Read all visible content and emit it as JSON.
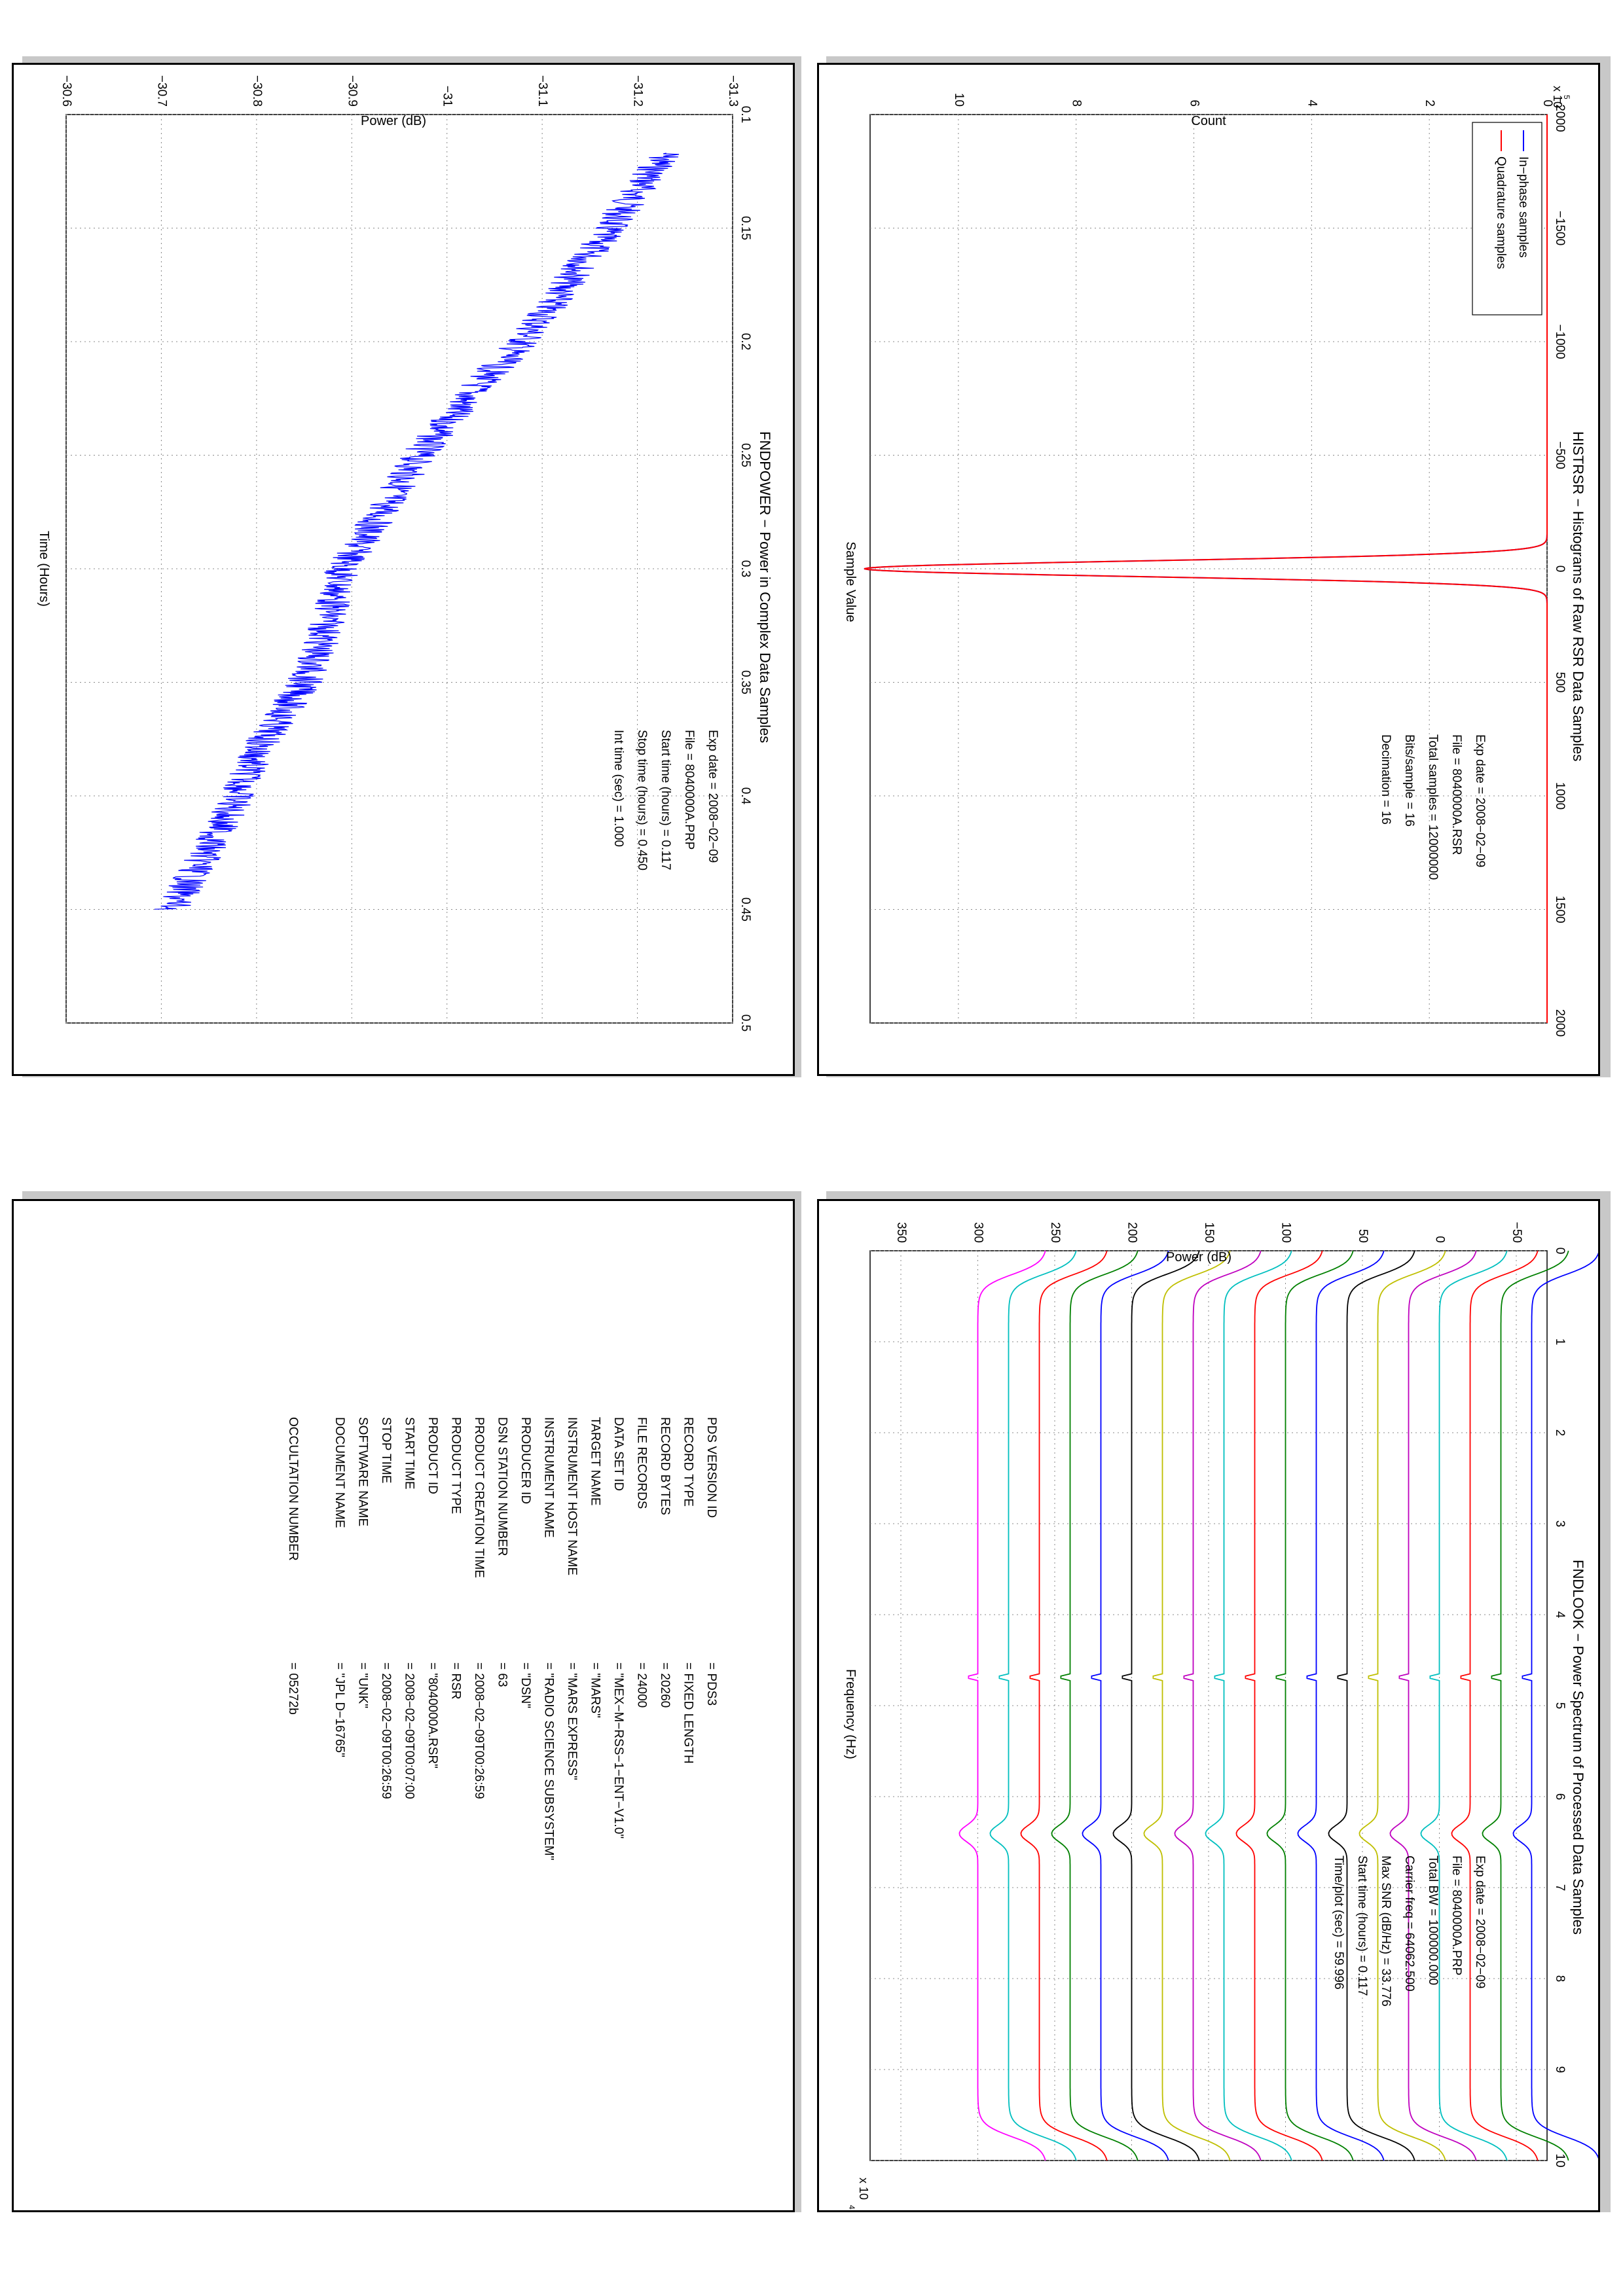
{
  "colors": {
    "inphase": "#0000ff",
    "quadrature": "#ff0000",
    "power_line": "#0000ff",
    "spectrum_cycle": [
      "#ff00ff",
      "#00bfbf",
      "#ff0000",
      "#008000",
      "#0000ff",
      "#000000",
      "#bfbf00",
      "#bf00bf",
      "#00bfbf",
      "#ff0000",
      "#008000",
      "#0000ff",
      "#000000",
      "#bfbf00",
      "#bf00bf",
      "#00bfbf",
      "#ff0000",
      "#008000",
      "#0000ff"
    ]
  },
  "histogram": {
    "title": "HISTRSR − Histograms of Raw RSR Data Samples",
    "xlabel": "Sample Value",
    "ylabel": "Count",
    "multiplier": "x 10",
    "multiplier_exp": "5",
    "legend": [
      "In−phase samples",
      "Quadrature samples"
    ],
    "info": [
      "Exp date = 2008−02−09",
      "File = 8040000A.RSR",
      "Total samples =  12000000",
      "Bits/sample    =        16",
      "Decimation     =        16"
    ],
    "x_ticks": [
      "−2000",
      "−1500",
      "−1000",
      "−500",
      "0",
      "500",
      "1000",
      "1500",
      "2000"
    ],
    "y_ticks": [
      "0",
      "2",
      "4",
      "6",
      "8",
      "10"
    ]
  },
  "power": {
    "title": "FNDPOWER − Power in Complex Data Samples",
    "xlabel": "Time (Hours)",
    "ylabel": "Power (dB)",
    "info": [
      "Exp date = 2008−02−09",
      "File = 8040000A.PRP",
      "Start time (hours) =   0.117",
      "Stop time (hours) =   0.450",
      "Int time (sec) =   1.000"
    ],
    "x_ticks": [
      "0.1",
      "0.15",
      "0.2",
      "0.25",
      "0.3",
      "0.35",
      "0.4",
      "0.45",
      "0.5"
    ],
    "y_ticks": [
      "−31.3",
      "−31.2",
      "−31.1",
      "−31",
      "−30.9",
      "−30.8",
      "−30.7",
      "−30.6"
    ]
  },
  "spectrum": {
    "title": "FNDLOOK − Power Spectrum of Processed Data Samples",
    "xlabel": "Frequency (Hz)",
    "ylabel": "Power (dB)",
    "multiplier": "x 10",
    "multiplier_exp": "4",
    "info": [
      "Exp date = 2008−02−09",
      "File = 8040000A.PRP",
      "Total BW =     100000.000",
      "Carrier freq =   64062.500",
      "Max SNR (dB/Hz) =     33.776",
      "Start time (hours) =     0.117",
      "Time/plot (sec) =     59.996"
    ],
    "x_ticks": [
      "0",
      "1",
      "2",
      "3",
      "4",
      "5",
      "6",
      "7",
      "8",
      "9",
      "10"
    ],
    "y_ticks": [
      "−50",
      "0",
      "50",
      "100",
      "150",
      "200",
      "250",
      "300",
      "350"
    ]
  },
  "label_table": {
    "rows": [
      {
        "key": "PDS VERSION ID",
        "value": "=   PDS3"
      },
      {
        "key": "RECORD TYPE",
        "value": "=   FIXED LENGTH"
      },
      {
        "key": "RECORD BYTES",
        "value": "=   20260"
      },
      {
        "key": "FILE RECORDS",
        "value": "=   24000"
      },
      {
        "key": "DATA SET ID",
        "value": "=   \"MEX−M−RSS−1−ENT−V1.0\""
      },
      {
        "key": "TARGET NAME",
        "value": "=   \"MARS\""
      },
      {
        "key": "INSTRUMENT HOST NAME",
        "value": "=   \"MARS EXPRESS\""
      },
      {
        "key": "INSTRUMENT NAME",
        "value": "=   \"RADIO SCIENCE SUBSYSTEM\""
      },
      {
        "key": "PRODUCER ID",
        "value": "=   \"DSN\""
      },
      {
        "key": "DSN STATION NUMBER",
        "value": "=   63"
      },
      {
        "key": "PRODUCT CREATION TIME",
        "value": "=   2008−02−09T00:26:59"
      },
      {
        "key": "PRODUCT TYPE",
        "value": "=   RSR"
      },
      {
        "key": "PRODUCT ID",
        "value": "=   \"8040000A.RSR\""
      },
      {
        "key": "START TIME",
        "value": "=   2008−02−09T00:07:00"
      },
      {
        "key": "STOP TIME",
        "value": "=   2008−02−09T00:26:59"
      },
      {
        "key": "SOFTWARE NAME",
        "value": "=   \"UNK\""
      },
      {
        "key": "DOCUMENT NAME",
        "value": "=   \"JPL D−16765\""
      },
      {
        "key": "",
        "value": ""
      },
      {
        "key": "OCCULTATION NUMBER",
        "value": "=   05272b"
      }
    ]
  },
  "chart_data": [
    {
      "type": "line",
      "title": "HISTRSR − Histograms of Raw RSR Data Samples",
      "xlabel": "Sample Value",
      "ylabel": "Count",
      "xlim": [
        -2000,
        2000
      ],
      "ylim": [
        0,
        1150000
      ],
      "grid": true,
      "legend_placement": "top-left",
      "series": [
        {
          "name": "In−phase samples",
          "x": [
            -2000,
            -500,
            -200,
            -150,
            -100,
            -75,
            -50,
            -25,
            0,
            25,
            50,
            75,
            100,
            150,
            200,
            500,
            2000
          ],
          "values": [
            0,
            0,
            0,
            100,
            3000,
            29000,
            161000,
            526000,
            1160000,
            526000,
            161000,
            29000,
            3000,
            100,
            0,
            0,
            0
          ]
        },
        {
          "name": "Quadrature samples",
          "x": [
            -2000,
            -500,
            -200,
            -150,
            -100,
            -75,
            -50,
            -25,
            0,
            25,
            50,
            75,
            100,
            150,
            200,
            500,
            2000
          ],
          "values": [
            0,
            0,
            0,
            100,
            3000,
            29000,
            161000,
            526000,
            1160000,
            526000,
            161000,
            29000,
            3000,
            100,
            0,
            0,
            0
          ]
        }
      ]
    },
    {
      "type": "line",
      "title": "FNDPOWER − Power in Complex Data Samples",
      "xlabel": "Time (Hours)",
      "ylabel": "Power (dB)",
      "xlim": [
        0.1,
        0.5
      ],
      "ylim": [
        -31.3,
        -30.6
      ],
      "grid": true,
      "series": [
        {
          "x": [
            0.117,
            0.15,
            0.2,
            0.22,
            0.25,
            0.27,
            0.3,
            0.33,
            0.35,
            0.38,
            0.4,
            0.43,
            0.45
          ],
          "values": [
            -31.23,
            -31.17,
            -31.08,
            -31.03,
            -30.97,
            -30.94,
            -30.89,
            -30.87,
            -30.85,
            -30.8,
            -30.78,
            -30.74,
            -30.71
          ]
        }
      ]
    },
    {
      "type": "line",
      "title": "FNDLOOK − Power Spectrum of Processed Data Samples",
      "xlabel": "Frequency (Hz)",
      "ylabel": "Power (dB)",
      "xlim": [
        0,
        100000
      ],
      "ylim": [
        -70,
        370
      ],
      "grid": true,
      "series_offsets_db": [
        300,
        280,
        260,
        240,
        220,
        200,
        180,
        160,
        140,
        120,
        100,
        80,
        60,
        40,
        20,
        0,
        -20,
        -40,
        -60
      ],
      "carrier_hz": 64062.5,
      "spike_hz": 46875,
      "note_shape": "each trace: flat passband from ~3000 to ~97000 Hz, roll-off at band edges, carrier peak near 64062.5 Hz"
    }
  ]
}
